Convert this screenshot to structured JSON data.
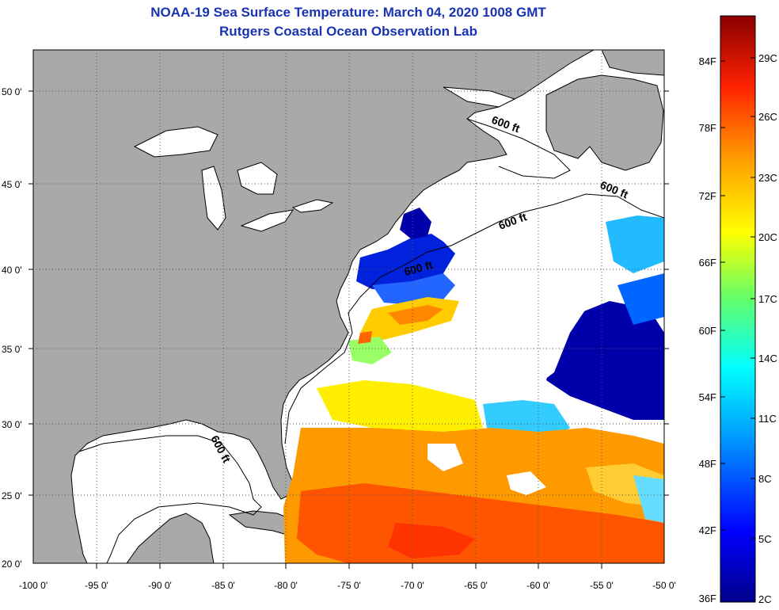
{
  "map": {
    "title": "NOAA-19 Sea Surface Temperature:  March 04, 2020 1008 GMT",
    "subtitle": "Rutgers Coastal Ocean Observation Lab",
    "lat_labels": [
      "50 0'",
      "45 0'",
      "40 0'",
      "35 0'",
      "30 0'",
      "25 0'",
      "20 0'"
    ],
    "lon_labels": [
      "-100 0'",
      "-95 0'",
      "-90 0'",
      "-85 0'",
      "-80 0'",
      "-75 0'",
      "-70 0'",
      "-65 0'",
      "-60 0'",
      "-55 0'",
      "-50 0'"
    ],
    "contour_label": "600 ft",
    "colors": {
      "land": "#a9a9a9",
      "water": "#ffffff",
      "title": "#1a33b3"
    }
  },
  "colorbar": {
    "f_labels": [
      "84F",
      "78F",
      "72F",
      "66F",
      "60F",
      "54F",
      "48F",
      "42F",
      "36F"
    ],
    "c_labels": [
      "29C",
      "26C",
      "23C",
      "20C",
      "17C",
      "14C",
      "11C",
      "8C",
      "5C",
      "2C"
    ]
  }
}
